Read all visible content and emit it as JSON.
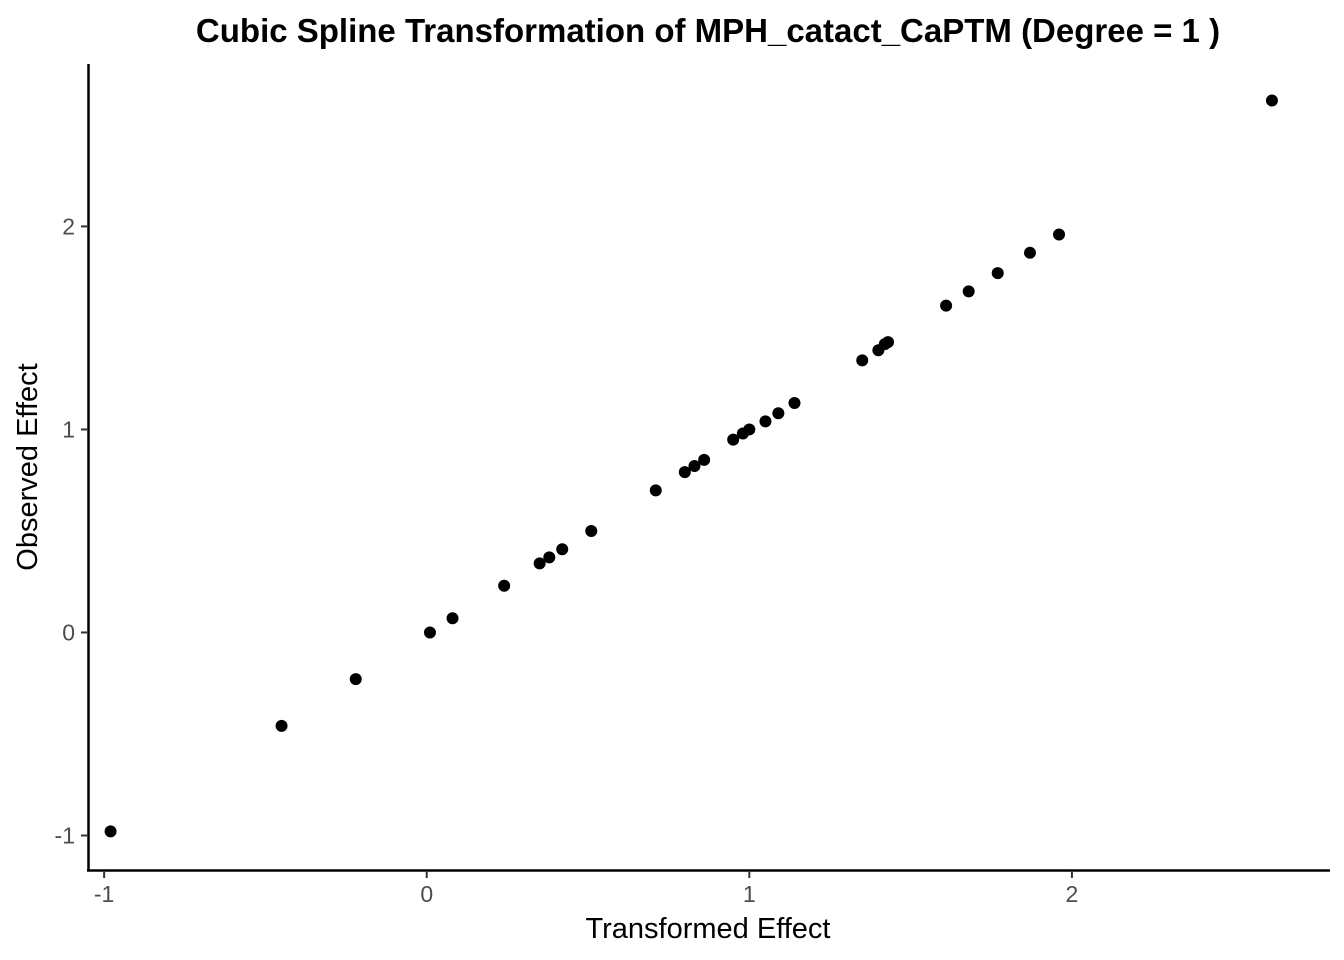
{
  "chart_data": {
    "type": "scatter",
    "title": "Cubic Spline Transformation of MPH_catact_CaPTM (Degree = 1 )",
    "xlabel": "Transformed Effect",
    "ylabel": "Observed Effect",
    "xlim": [
      -1.05,
      2.8
    ],
    "ylim": [
      -1.17,
      2.8
    ],
    "x_ticks": [
      -1,
      0,
      1,
      2
    ],
    "x_tick_labels": [
      "-1",
      "0",
      "1",
      "2"
    ],
    "y_ticks": [
      -1,
      0,
      1,
      2
    ],
    "y_tick_labels": [
      "-1",
      "0",
      "1",
      "2"
    ],
    "grid": false,
    "point_color": "#000000",
    "points": [
      {
        "x": -0.98,
        "y": -0.98
      },
      {
        "x": -0.45,
        "y": -0.46
      },
      {
        "x": -0.22,
        "y": -0.23
      },
      {
        "x": 0.01,
        "y": 0.0
      },
      {
        "x": 0.08,
        "y": 0.07
      },
      {
        "x": 0.24,
        "y": 0.23
      },
      {
        "x": 0.35,
        "y": 0.34
      },
      {
        "x": 0.38,
        "y": 0.37
      },
      {
        "x": 0.42,
        "y": 0.41
      },
      {
        "x": 0.51,
        "y": 0.5
      },
      {
        "x": 0.71,
        "y": 0.7
      },
      {
        "x": 0.8,
        "y": 0.79
      },
      {
        "x": 0.83,
        "y": 0.82
      },
      {
        "x": 0.86,
        "y": 0.85
      },
      {
        "x": 0.95,
        "y": 0.95
      },
      {
        "x": 0.98,
        "y": 0.98
      },
      {
        "x": 1.0,
        "y": 1.0
      },
      {
        "x": 1.05,
        "y": 1.04
      },
      {
        "x": 1.09,
        "y": 1.08
      },
      {
        "x": 1.14,
        "y": 1.13
      },
      {
        "x": 1.35,
        "y": 1.34
      },
      {
        "x": 1.4,
        "y": 1.39
      },
      {
        "x": 1.42,
        "y": 1.42
      },
      {
        "x": 1.43,
        "y": 1.43
      },
      {
        "x": 1.61,
        "y": 1.61
      },
      {
        "x": 1.68,
        "y": 1.68
      },
      {
        "x": 1.77,
        "y": 1.77
      },
      {
        "x": 1.87,
        "y": 1.87
      },
      {
        "x": 1.96,
        "y": 1.96
      },
      {
        "x": 2.62,
        "y": 2.62
      }
    ]
  }
}
